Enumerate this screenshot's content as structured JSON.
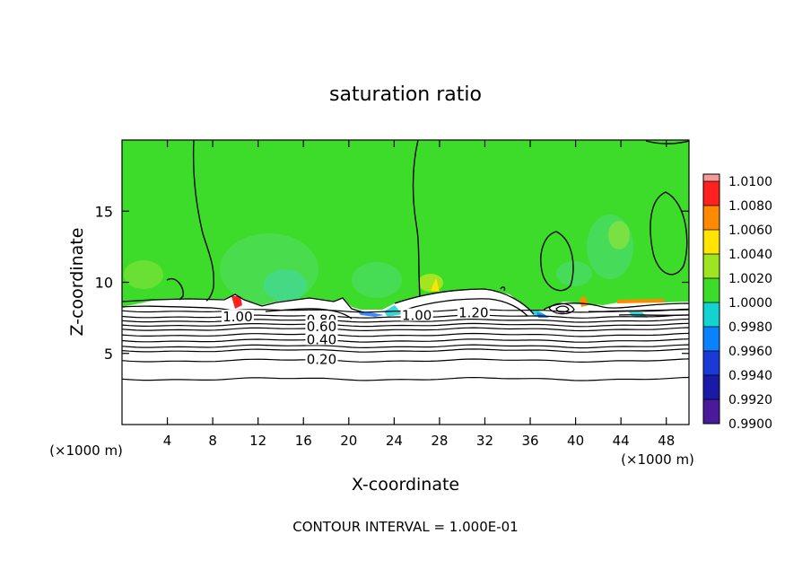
{
  "chart_data": {
    "type": "heatmap",
    "title": "saturation ratio",
    "xlabel": "X-coordinate",
    "ylabel": "Z-coordinate",
    "x_unit": "(×1000 m)",
    "z_unit": "(×1000 m)",
    "xlim": [
      0,
      50
    ],
    "ylim": [
      0,
      20
    ],
    "x_ticks": [
      4,
      8,
      12,
      16,
      20,
      24,
      28,
      32,
      36,
      40,
      44,
      48
    ],
    "y_ticks": [
      5,
      10,
      15
    ],
    "footer": "CONTOUR INTERVAL = 1.000E-01",
    "grid": false,
    "colorbar": {
      "placement": "right",
      "levels": [
        "0.9900",
        "0.9920",
        "0.9940",
        "0.9960",
        "0.9980",
        "1.0000",
        "1.0020",
        "1.0040",
        "1.0060",
        "1.0080",
        "1.0100"
      ],
      "colors": [
        "#5a1a9a",
        "#1a1aa8",
        "#1a3ad8",
        "#0a82ff",
        "#12d2d2",
        "#3ddc2a",
        "#b8ee18",
        "#ffe400",
        "#ff8a00",
        "#ff2020",
        "#f49a9a"
      ]
    },
    "contour_labels": [
      {
        "x": 10.2,
        "y": 7.5,
        "text": "1.00"
      },
      {
        "x": 17.6,
        "y": 7.3,
        "text": "0.80"
      },
      {
        "x": 17.6,
        "y": 6.8,
        "text": "0.60"
      },
      {
        "x": 17.6,
        "y": 5.9,
        "text": "0.40"
      },
      {
        "x": 17.6,
        "y": 4.5,
        "text": "0.20"
      },
      {
        "x": 26.0,
        "y": 7.6,
        "text": "1.00"
      },
      {
        "x": 31.0,
        "y": 7.8,
        "text": "1.20"
      }
    ],
    "contour_levels_below": [
      8.0,
      7.6,
      7.3,
      7.0,
      6.7,
      6.3,
      5.9,
      5.5,
      5.2,
      4.5,
      3.2
    ]
  }
}
